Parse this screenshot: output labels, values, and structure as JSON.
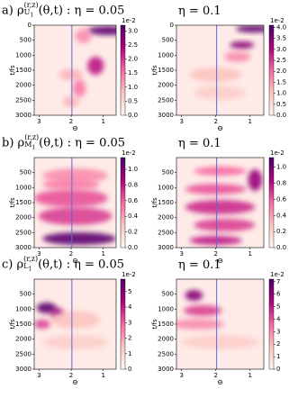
{
  "figure": {
    "ylabel": "t/fs",
    "xlabel": "Θ",
    "xticks": [
      3,
      2,
      1
    ],
    "xlim": [
      3.15,
      0.6
    ],
    "ylim": [
      0,
      3000
    ],
    "symbol": "ρ",
    "sup": "(r,z)",
    "args": "(θ,t)",
    "eta_left": ": η = 0.05",
    "eta_right": "η = 0.1",
    "rows": [
      {
        "letter": "a)",
        "sub": "U",
        "subidx": "1",
        "yticks": [
          0,
          500,
          1000,
          1500,
          2000,
          2500,
          3000
        ],
        "left": {
          "exponent": "1e-2",
          "clim": [
            0,
            3.2
          ],
          "cticks": [
            {
              "value": 0,
              "label": "0.0"
            },
            {
              "value": 0.5,
              "label": "0.5"
            },
            {
              "value": 1,
              "label": "1.0"
            },
            {
              "value": 1.5,
              "label": "1.5"
            },
            {
              "value": 2,
              "label": "2.0"
            },
            {
              "value": 2.5,
              "label": "2.5"
            },
            {
              "value": 3,
              "label": "3.0"
            }
          ]
        },
        "right": {
          "exponent": "1e-2",
          "clim": [
            0,
            4.1
          ],
          "cticks": [
            {
              "value": 0,
              "label": "0.0"
            },
            {
              "value": 0.5,
              "label": "0.5"
            },
            {
              "value": 1,
              "label": "1.0"
            },
            {
              "value": 1.5,
              "label": "1.5"
            },
            {
              "value": 2,
              "label": "2.0"
            },
            {
              "value": 2.5,
              "label": "2.5"
            },
            {
              "value": 3,
              "label": "3.0"
            },
            {
              "value": 3.5,
              "label": "3.5"
            },
            {
              "value": 4,
              "label": "4.0"
            }
          ]
        }
      },
      {
        "letter": "b)",
        "sub": "M",
        "subidx": "1",
        "yticks": [
          500,
          1000,
          1500,
          2000,
          2500,
          3000
        ],
        "left": {
          "exponent": "1e-2",
          "clim": [
            0,
            1.15
          ],
          "cticks": [
            {
              "value": 0,
              "label": "0.0"
            },
            {
              "value": 0.2,
              "label": "0.2"
            },
            {
              "value": 0.4,
              "label": "0.4"
            },
            {
              "value": 0.6,
              "label": "0.6"
            },
            {
              "value": 0.8,
              "label": "0.8"
            },
            {
              "value": 1,
              "label": "1.0"
            }
          ]
        },
        "right": {
          "exponent": "1e-2",
          "clim": [
            0,
            1.12
          ],
          "cticks": [
            {
              "value": 0,
              "label": "0.0"
            },
            {
              "value": 0.2,
              "label": "0.2"
            },
            {
              "value": 0.4,
              "label": "0.4"
            },
            {
              "value": 0.6,
              "label": "0.6"
            },
            {
              "value": 0.8,
              "label": "0.8"
            },
            {
              "value": 1,
              "label": "1.0"
            }
          ]
        }
      },
      {
        "letter": "c)",
        "sub": "L",
        "subidx": "1",
        "yticks": [
          500,
          1000,
          1500,
          2000,
          2500,
          3000
        ],
        "left": {
          "exponent": "1e-2",
          "clim": [
            0,
            5.8
          ],
          "cticks": [
            0,
            1,
            2,
            3,
            4,
            5
          ]
        },
        "right": {
          "exponent": "1e-2",
          "clim": [
            0,
            7.2
          ],
          "cticks": [
            0,
            1,
            2,
            3,
            4,
            5,
            6,
            7
          ]
        }
      }
    ]
  }
}
